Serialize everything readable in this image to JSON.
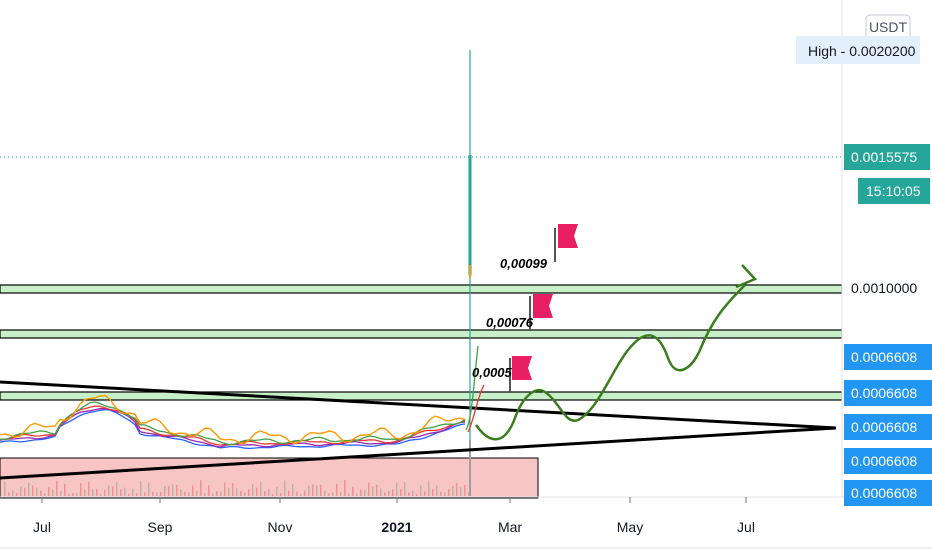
{
  "chart_data": {
    "type": "line",
    "currency": "USDT",
    "high_label": "High - 0.0020200",
    "last_price": "0.0015575",
    "countdown": "15:10:05",
    "price_scale_labels": [
      "0.0010000"
    ],
    "blue_price_tags": [
      "0.0006608",
      "0.0006608",
      "0.0006608",
      "0.0006608",
      "0.0006608"
    ],
    "time_labels": [
      "Jul",
      "Sep",
      "Nov",
      "2021",
      "Mar",
      "May",
      "Jul"
    ],
    "annotations": [
      {
        "text": "0,00099",
        "kind": "target-flag"
      },
      {
        "text": "0,00076",
        "kind": "target-flag"
      },
      {
        "text": "0,0005",
        "kind": "target-flag"
      }
    ],
    "horizontal_zones": [
      "0.00099",
      "0.00076",
      "0.0005"
    ],
    "colors": {
      "price_tag_green": "#26a69a",
      "price_tag_blue": "#2196f3",
      "zone_fill": "#c8f0c8",
      "forecast_path": "#3a7d1e",
      "flag": "#e91e63",
      "volume_box": "#f8c5c5",
      "spike": "#26a69a"
    },
    "grid": false
  }
}
